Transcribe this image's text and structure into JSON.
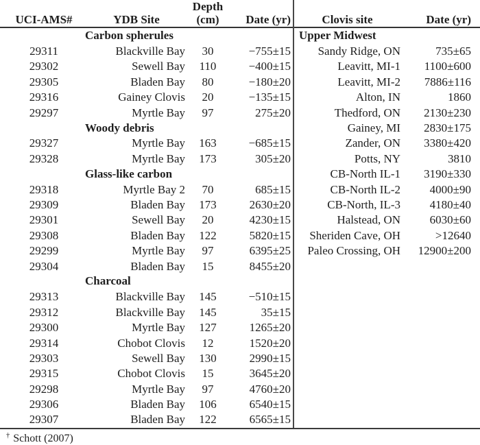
{
  "left_table": {
    "headers": {
      "ams": "UCI-AMS#",
      "site": "YDB Site",
      "depth_line1": "Depth",
      "depth_line2": "(cm)",
      "date": "Date (yr)"
    },
    "rows": [
      {
        "section": "Carbon spherules"
      },
      {
        "ams": "29311",
        "site": "Blackville Bay",
        "depth": "30",
        "date": "−755±15"
      },
      {
        "ams": "29302",
        "site": "Sewell Bay",
        "depth": "110",
        "date": "−400±15"
      },
      {
        "ams": "29305",
        "site": "Bladen Bay",
        "depth": "80",
        "date": "−180±20"
      },
      {
        "ams": "29316",
        "site": "Gainey Clovis",
        "depth": "20",
        "date": "−135±15"
      },
      {
        "ams": "29297",
        "site": "Myrtle Bay",
        "depth": "97",
        "date": "275±20"
      },
      {
        "section": "Woody debris"
      },
      {
        "ams": "29327",
        "site": "Myrtle Bay",
        "depth": "163",
        "date": "−685±15"
      },
      {
        "ams": "29328",
        "site": "Myrtle Bay",
        "depth": "173",
        "date": "305±20"
      },
      {
        "section": "Glass-like carbon"
      },
      {
        "ams": "29318",
        "site": "Myrtle Bay 2",
        "depth": "70",
        "date": "685±15"
      },
      {
        "ams": "29309",
        "site": "Bladen Bay",
        "depth": "173",
        "date": "2630±20"
      },
      {
        "ams": "29301",
        "site": "Sewell Bay",
        "depth": "20",
        "date": "4230±15"
      },
      {
        "ams": "29308",
        "site": "Bladen Bay",
        "depth": "122",
        "date": "5820±15"
      },
      {
        "ams": "29299",
        "site": "Myrtle Bay",
        "depth": "97",
        "date": "6395±25"
      },
      {
        "ams": "29304",
        "site": "Bladen Bay",
        "depth": "15",
        "date": "8455±20"
      },
      {
        "section": "Charcoal"
      },
      {
        "ams": "29313",
        "site": "Blackville Bay",
        "depth": "145",
        "date": "−510±15"
      },
      {
        "ams": "29312",
        "site": "Blackville Bay",
        "depth": "145",
        "date": "35±15"
      },
      {
        "ams": "29300",
        "site": "Myrtle Bay",
        "depth": "127",
        "date": "1265±20"
      },
      {
        "ams": "29314",
        "site": "Chobot Clovis",
        "depth": "12",
        "date": "1520±20"
      },
      {
        "ams": "29303",
        "site": "Sewell Bay",
        "depth": "130",
        "date": "2990±15"
      },
      {
        "ams": "29315",
        "site": "Chobot Clovis",
        "depth": "15",
        "date": "3645±20"
      },
      {
        "ams": "29298",
        "site": "Myrtle Bay",
        "depth": "97",
        "date": "4760±20"
      },
      {
        "ams": "29306",
        "site": "Bladen Bay",
        "depth": "106",
        "date": "6540±15"
      },
      {
        "ams": "29307",
        "site": "Bladen Bay",
        "depth": "122",
        "date": "6565±15"
      }
    ]
  },
  "right_table": {
    "headers": {
      "site": "Clovis site",
      "date": "Date (yr)"
    },
    "rows": [
      {
        "section": "Upper Midwest"
      },
      {
        "site": "Sandy Ridge, ON",
        "date": "735±65"
      },
      {
        "site": "Leavitt, MI-1",
        "date": "1100±600"
      },
      {
        "site": "Leavitt, MI-2",
        "date": "7886±116"
      },
      {
        "site": "Alton, IN",
        "date": "1860"
      },
      {
        "site": "Thedford, ON",
        "date": "2130±230"
      },
      {
        "site": "Gainey, MI",
        "date": "2830±175"
      },
      {
        "site": "Zander, ON",
        "date": "3380±420"
      },
      {
        "site": "Potts, NY",
        "date": "3810"
      },
      {
        "site": "CB-North IL-1",
        "date": "3190±330"
      },
      {
        "site": "CB-North IL-2",
        "date": "4000±90"
      },
      {
        "site": "CB-North, IL-3",
        "date": "4180±40"
      },
      {
        "site": "Halstead, ON",
        "date": "6030±60"
      },
      {
        "site": "Sheriden Cave, OH",
        "date": ">12640"
      },
      {
        "site": "Paleo Crossing, OH",
        "date": "12900±200"
      }
    ]
  },
  "footnote": {
    "marker": "†",
    "text": "Schott (2007)"
  },
  "colors": {
    "text": "#1e1e1e",
    "rule": "#3a3a3a",
    "background": "#ffffff"
  }
}
